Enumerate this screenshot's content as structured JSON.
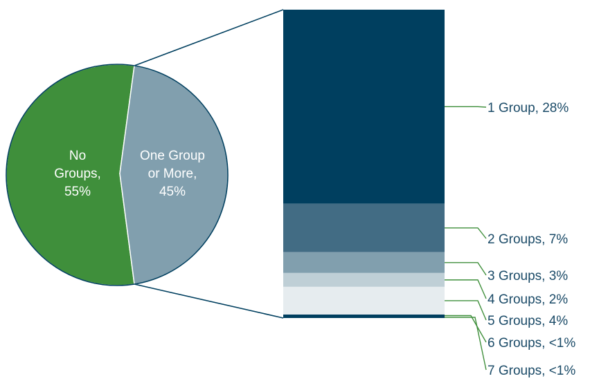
{
  "chart_data": [
    {
      "type": "pie",
      "title": "",
      "slices": [
        {
          "label_lines": [
            "No",
            "Groups,",
            "55%"
          ],
          "value": 55,
          "color": "#3f8f3b"
        },
        {
          "label_lines": [
            "One Group",
            "or More,",
            "45%"
          ],
          "value": 45,
          "color": "#819fae"
        }
      ]
    },
    {
      "type": "bar",
      "stacked": true,
      "title": "",
      "label_color": "#1a4a67",
      "leader_color": "#3f8f3b",
      "segments": [
        {
          "label": "1 Group, 28%",
          "value": 28,
          "color": "#003f5f"
        },
        {
          "label": "2 Groups, 7%",
          "value": 7,
          "color": "#426c84"
        },
        {
          "label": "3 Groups, 3%",
          "value": 3,
          "color": "#819fae"
        },
        {
          "label": "4 Groups, 2%",
          "value": 2,
          "color": "#bfcfd6"
        },
        {
          "label": "5 Groups, 4%",
          "value": 4,
          "color": "#e6ecef"
        },
        {
          "label": "6 Groups, <1%",
          "value": 0.3,
          "color": "#003f5f"
        },
        {
          "label": "7 Groups, <1%",
          "value": 0.2,
          "color": "#003f5f"
        }
      ]
    }
  ]
}
